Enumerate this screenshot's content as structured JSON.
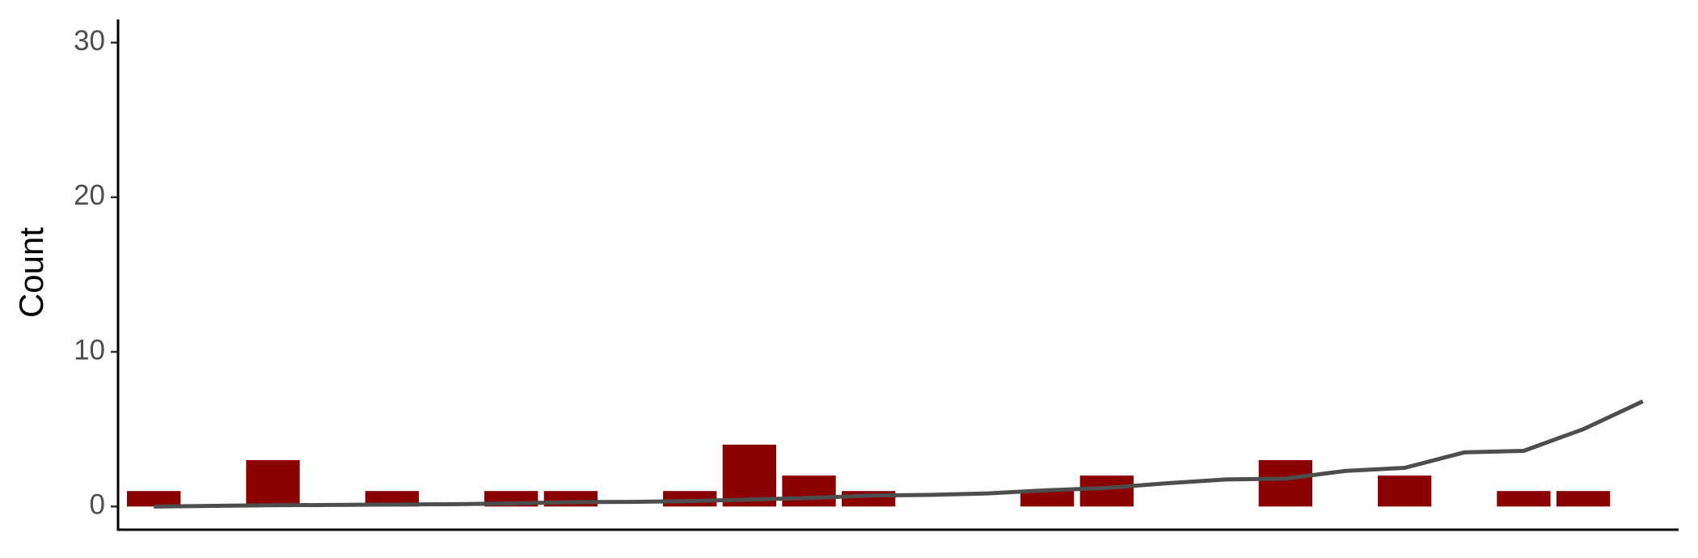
{
  "chart_data": {
    "type": "bar",
    "ylabel": "Count",
    "categories": [
      null,
      null,
      null,
      null,
      null,
      null,
      null,
      null,
      null,
      null,
      null,
      null,
      null,
      null,
      null,
      null,
      null,
      null,
      null,
      null,
      null,
      null,
      null,
      null,
      null,
      null
    ],
    "series": [
      {
        "type": "bar",
        "color": "#8b0000",
        "values": [
          1,
          0,
          3,
          0,
          1,
          0,
          1,
          1,
          0,
          1,
          4,
          2,
          1,
          0,
          0,
          1,
          2,
          0,
          0,
          3,
          0,
          2,
          0,
          1,
          1,
          0
        ]
      },
      {
        "type": "line",
        "color": "#4d4d4d",
        "values": [
          0,
          0.04,
          0.08,
          0.1,
          0.13,
          0.15,
          0.2,
          0.28,
          0.3,
          0.35,
          0.45,
          0.55,
          0.7,
          0.75,
          0.85,
          1.05,
          1.2,
          1.5,
          1.75,
          1.8,
          2.3,
          2.5,
          3.5,
          3.6,
          5.0,
          6.8
        ]
      }
    ],
    "ylim": [
      -1.5,
      31.5
    ],
    "yticks": [
      0,
      10,
      20,
      30
    ]
  }
}
